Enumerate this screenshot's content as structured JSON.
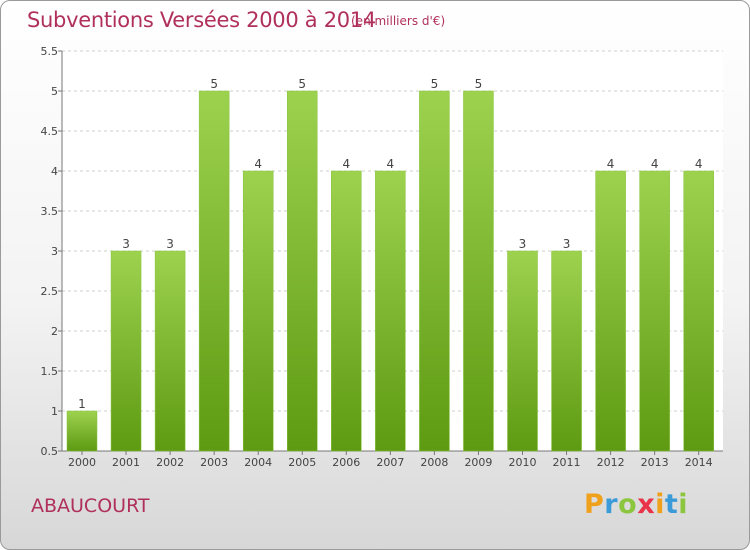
{
  "chart_data": {
    "type": "bar",
    "title": "Subventions Versées 2000 à 2014",
    "subtitle": "(en milliers d'€)",
    "categories": [
      "2000",
      "2001",
      "2002",
      "2003",
      "2004",
      "2005",
      "2006",
      "2007",
      "2008",
      "2009",
      "2010",
      "2011",
      "2012",
      "2013",
      "2014"
    ],
    "values": [
      1,
      3,
      3,
      5,
      4,
      5,
      4,
      4,
      5,
      5,
      3,
      3,
      4,
      4,
      4
    ],
    "data_labels": [
      "1",
      "3",
      "3",
      "5",
      "4",
      "5",
      "4",
      "4",
      "5",
      "5",
      "3",
      "3",
      "4",
      "4",
      "4"
    ],
    "ylim": [
      0.5,
      5.5
    ],
    "yticks": [
      "0.5",
      "1",
      "1.5",
      "2",
      "2.5",
      "3",
      "3.5",
      "4",
      "4.5",
      "5",
      "5.5"
    ],
    "grid": true,
    "bar_colors": {
      "top": "#9dd24f",
      "bottom": "#5e9a12"
    }
  },
  "commune": "ABAUCOURT",
  "logo": {
    "letters": [
      "P",
      "r",
      "o",
      "x",
      "i",
      "t",
      "i"
    ],
    "colors": [
      "#f0a11c",
      "#3a9bd8",
      "#8cc63e",
      "#e8334a",
      "#f0a11c",
      "#3a9bd8",
      "#8cc63e"
    ]
  }
}
